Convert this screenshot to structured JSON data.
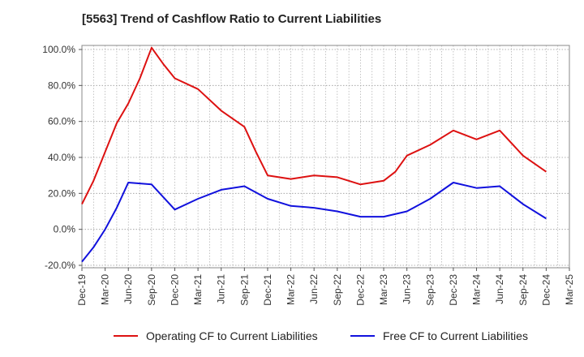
{
  "chart_data": {
    "type": "line",
    "title": "[5563]  Trend of Cashflow Ratio to Current Liabilities",
    "xlabel": "",
    "ylabel": "",
    "ylim": [
      -20,
      100
    ],
    "y_ticks": [
      "-20.0%",
      "0.0%",
      "20.0%",
      "40.0%",
      "60.0%",
      "80.0%",
      "100.0%"
    ],
    "y_tick_values": [
      -20,
      0,
      20,
      40,
      60,
      80,
      100
    ],
    "x_ticks": [
      "Dec-19",
      "Mar-20",
      "Jun-20",
      "Sep-20",
      "Dec-20",
      "Mar-21",
      "Jun-21",
      "Sep-21",
      "Dec-21",
      "Mar-22",
      "Jun-22",
      "Sep-22",
      "Dec-22",
      "Mar-23",
      "Jun-23",
      "Sep-23",
      "Dec-23",
      "Mar-24",
      "Jun-24",
      "Sep-24",
      "Dec-24",
      "Mar-25"
    ],
    "grid": true,
    "legend_position": "bottom",
    "series": [
      {
        "name": "Operating CF to Current Liabilities",
        "color": "#dd1111",
        "points": [
          [
            0,
            14
          ],
          [
            1,
            27
          ],
          [
            2,
            43
          ],
          [
            3,
            59
          ],
          [
            4,
            70
          ],
          [
            5,
            84
          ],
          [
            6,
            101
          ],
          [
            7,
            92
          ],
          [
            8,
            84
          ],
          [
            10,
            78
          ],
          [
            12,
            66
          ],
          [
            14,
            57
          ],
          [
            15,
            43
          ],
          [
            16,
            30
          ],
          [
            18,
            28
          ],
          [
            20,
            30
          ],
          [
            22,
            29
          ],
          [
            24,
            25
          ],
          [
            26,
            27
          ],
          [
            27,
            32
          ],
          [
            28,
            41
          ],
          [
            30,
            47
          ],
          [
            32,
            55
          ],
          [
            34,
            50
          ],
          [
            36,
            55
          ],
          [
            37,
            48
          ],
          [
            38,
            41
          ],
          [
            40,
            32
          ]
        ]
      },
      {
        "name": "Free CF to Current Liabilities",
        "color": "#1111dd",
        "points": [
          [
            0,
            -18
          ],
          [
            1,
            -10
          ],
          [
            2,
            0
          ],
          [
            3,
            12
          ],
          [
            4,
            26
          ],
          [
            6,
            25
          ],
          [
            8,
            11
          ],
          [
            10,
            17
          ],
          [
            12,
            22
          ],
          [
            14,
            24
          ],
          [
            16,
            17
          ],
          [
            18,
            13
          ],
          [
            20,
            12
          ],
          [
            22,
            10
          ],
          [
            24,
            7
          ],
          [
            26,
            7
          ],
          [
            28,
            10
          ],
          [
            30,
            17
          ],
          [
            32,
            26
          ],
          [
            34,
            23
          ],
          [
            36,
            24
          ],
          [
            38,
            14
          ],
          [
            40,
            6
          ]
        ]
      }
    ]
  }
}
